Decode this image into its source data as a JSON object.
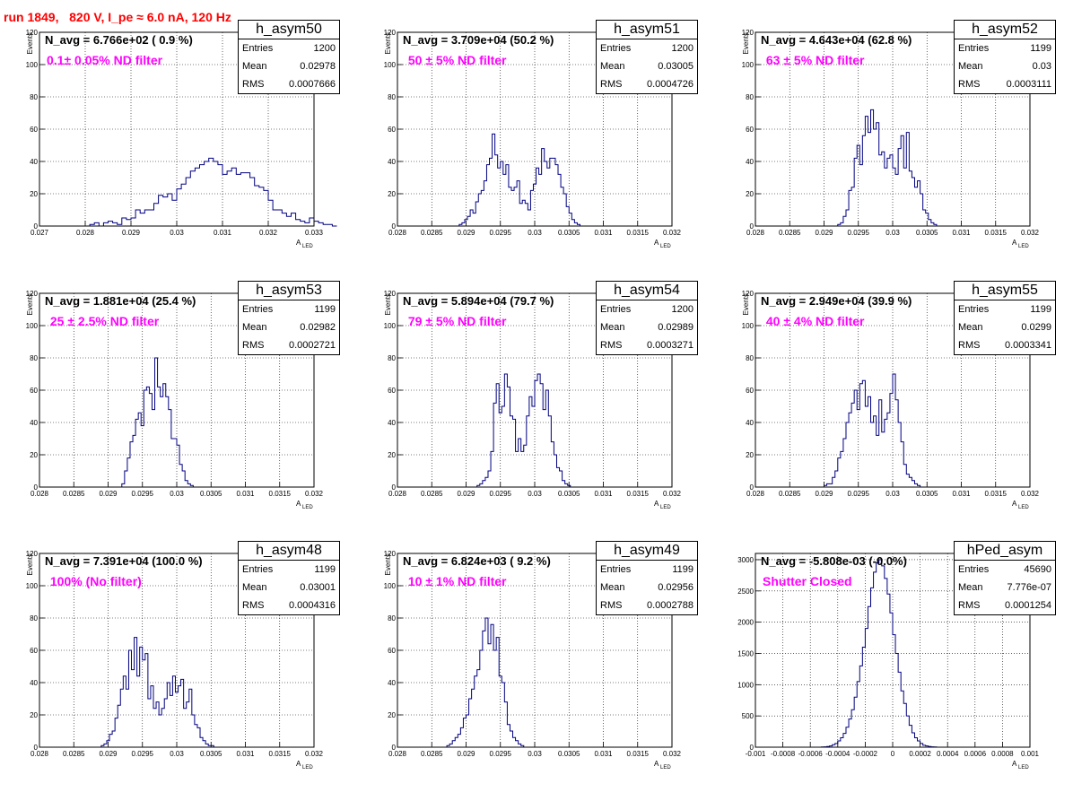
{
  "header": {
    "run_title": "run 1849,   820 V, I_pe ≈ 6.0 nA, 120 Hz",
    "title_color": "#ff0000"
  },
  "colors": {
    "histogram_line": "#000080",
    "filter_label": "#ff00ff",
    "grid": "#000000"
  },
  "chart_data": [
    {
      "type": "bar",
      "name": "h_asym50",
      "n_avg_label": "N_avg = 6.766e+02 ( 0.9 %)",
      "filter_label": "0.1± 0.05% ND filter",
      "stats": {
        "entries": "1200",
        "mean": "0.02978",
        "rms": "0.0007666"
      },
      "xlabel": "A",
      "xlabel_sub": "LED",
      "ylabel": "Events",
      "xlim": [
        0.027,
        0.033
      ],
      "ylim": [
        0,
        120
      ],
      "xticks": [
        "0.027",
        "0.028",
        "0.029",
        "0.03",
        "0.031",
        "0.032",
        "0.033"
      ],
      "yticks": [
        "0",
        "20",
        "40",
        "60",
        "80",
        "100",
        "120"
      ],
      "bin_start": 0.0275,
      "bin_width": 0.0001,
      "values": [
        0,
        0,
        0,
        0,
        0,
        0,
        1,
        2,
        0,
        2,
        3,
        2,
        1,
        5,
        4,
        5,
        10,
        8,
        10,
        10,
        14,
        19,
        18,
        20,
        16,
        23,
        26,
        30,
        34,
        36,
        38,
        40,
        42,
        40,
        38,
        32,
        34,
        36,
        32,
        33,
        33,
        30,
        25,
        24,
        22,
        16,
        10,
        10,
        8,
        6,
        8,
        4,
        3,
        2,
        5,
        3,
        2,
        1,
        1,
        0
      ]
    },
    {
      "type": "bar",
      "name": "h_asym51",
      "n_avg_label": "N_avg = 3.709e+04 (50.2 %)",
      "filter_label": " 50 ± 5% ND filter",
      "stats": {
        "entries": "1200",
        "mean": "0.03005",
        "rms": "0.0004726"
      },
      "xlabel": "A",
      "xlabel_sub": "LED",
      "ylabel": "Events",
      "xlim": [
        0.028,
        0.032
      ],
      "ylim": [
        0,
        120
      ],
      "xticks": [
        "0.028",
        "0.0285",
        "0.029",
        "0.0295",
        "0.03",
        "0.0305",
        "0.031",
        "0.0315",
        "0.032"
      ],
      "yticks": [
        "0",
        "20",
        "40",
        "60",
        "80",
        "100",
        "120"
      ],
      "bin_start": 0.0289,
      "bin_width": 4e-05,
      "values": [
        1,
        2,
        4,
        6,
        10,
        8,
        15,
        20,
        22,
        28,
        38,
        42,
        57,
        44,
        36,
        40,
        32,
        38,
        24,
        22,
        24,
        28,
        14,
        16,
        14,
        10,
        22,
        26,
        36,
        32,
        48,
        40,
        36,
        42,
        42,
        38,
        32,
        24,
        20,
        12,
        8,
        4,
        2,
        1,
        0
      ]
    },
    {
      "type": "bar",
      "name": "h_asym52",
      "n_avg_label": "N_avg = 4.643e+04 (62.8 %)",
      "filter_label": " 63 ± 5% ND filter",
      "stats": {
        "entries": "1199",
        "mean": "0.03",
        "rms": "0.0003111"
      },
      "xlabel": "A",
      "xlabel_sub": "LED",
      "ylabel": "Events",
      "xlim": [
        0.028,
        0.032
      ],
      "ylim": [
        0,
        120
      ],
      "xticks": [
        "0.028",
        "0.0285",
        "0.029",
        "0.0295",
        "0.03",
        "0.0305",
        "0.031",
        "0.0315",
        "0.032"
      ],
      "yticks": [
        "0",
        "20",
        "40",
        "60",
        "80",
        "100",
        "120"
      ],
      "bin_start": 0.0292,
      "bin_width": 4e-05,
      "values": [
        1,
        2,
        6,
        10,
        22,
        24,
        42,
        50,
        38,
        56,
        68,
        58,
        72,
        60,
        64,
        44,
        46,
        36,
        42,
        44,
        36,
        32,
        48,
        56,
        36,
        58,
        34,
        30,
        24,
        28,
        20,
        10,
        8,
        4,
        2,
        1
      ]
    },
    {
      "type": "bar",
      "name": "h_asym53",
      "n_avg_label": "N_avg = 1.881e+04 (25.4 %)",
      "filter_label": " 25 ± 2.5% ND filter",
      "stats": {
        "entries": "1199",
        "mean": "0.02982",
        "rms": "0.0002721"
      },
      "xlabel": "A",
      "xlabel_sub": "LED",
      "ylabel": "Events",
      "xlim": [
        0.028,
        0.032
      ],
      "ylim": [
        0,
        120
      ],
      "xticks": [
        "0.028",
        "0.0285",
        "0.029",
        "0.0295",
        "0.03",
        "0.0305",
        "0.031",
        "0.0315",
        "0.032"
      ],
      "yticks": [
        "0",
        "20",
        "40",
        "60",
        "80",
        "100",
        "120"
      ],
      "bin_start": 0.0292,
      "bin_width": 4e-05,
      "values": [
        2,
        10,
        18,
        28,
        32,
        42,
        46,
        38,
        60,
        62,
        58,
        48,
        80,
        62,
        56,
        64,
        56,
        48,
        30,
        30,
        26,
        14,
        10,
        4,
        2,
        1
      ]
    },
    {
      "type": "bar",
      "name": "h_asym54",
      "n_avg_label": "N_avg = 5.894e+04 (79.7 %)",
      "filter_label": " 79 ± 5% ND filter",
      "stats": {
        "entries": "1200",
        "mean": "0.02989",
        "rms": "0.0003271"
      },
      "xlabel": "A",
      "xlabel_sub": "LED",
      "ylabel": "Events",
      "xlim": [
        0.028,
        0.032
      ],
      "ylim": [
        0,
        120
      ],
      "xticks": [
        "0.028",
        "0.0285",
        "0.029",
        "0.0295",
        "0.03",
        "0.0305",
        "0.031",
        "0.0315",
        "0.032"
      ],
      "yticks": [
        "0",
        "20",
        "40",
        "60",
        "80",
        "100",
        "120"
      ],
      "bin_start": 0.02916,
      "bin_width": 4e-05,
      "values": [
        1,
        2,
        4,
        6,
        10,
        22,
        52,
        64,
        46,
        50,
        70,
        62,
        44,
        42,
        22,
        30,
        22,
        26,
        44,
        56,
        50,
        66,
        70,
        64,
        48,
        60,
        44,
        28,
        20,
        12,
        10,
        4,
        2,
        1
      ]
    },
    {
      "type": "bar",
      "name": "h_asym55",
      "n_avg_label": "N_avg = 2.949e+04 (39.9 %)",
      "filter_label": " 40 ± 4% ND filter",
      "stats": {
        "entries": "1199",
        "mean": "0.0299",
        "rms": "0.0003341"
      },
      "xlabel": "A",
      "xlabel_sub": "LED",
      "ylabel": "Events",
      "xlim": [
        0.028,
        0.032
      ],
      "ylim": [
        0,
        120
      ],
      "xticks": [
        "0.028",
        "0.0285",
        "0.029",
        "0.0295",
        "0.03",
        "0.0305",
        "0.031",
        "0.0315",
        "0.032"
      ],
      "yticks": [
        "0",
        "20",
        "40",
        "60",
        "80",
        "100",
        "120"
      ],
      "bin_start": 0.029,
      "bin_width": 4e-05,
      "values": [
        1,
        2,
        2,
        6,
        10,
        18,
        22,
        30,
        40,
        46,
        52,
        60,
        48,
        64,
        66,
        50,
        56,
        40,
        44,
        32,
        54,
        34,
        42,
        46,
        58,
        70,
        54,
        40,
        28,
        14,
        8,
        6,
        4,
        2,
        1
      ]
    },
    {
      "type": "bar",
      "name": "h_asym48",
      "n_avg_label": "N_avg = 7.391e+04 (100.0 %)",
      "filter_label": " 100% (No filter)",
      "stats": {
        "entries": "1199",
        "mean": "0.03001",
        "rms": "0.0004316"
      },
      "xlabel": "A",
      "xlabel_sub": "LED",
      "ylabel": "Events",
      "xlim": [
        0.028,
        0.032
      ],
      "ylim": [
        0,
        120
      ],
      "xticks": [
        "0.028",
        "0.0285",
        "0.029",
        "0.0295",
        "0.03",
        "0.0305",
        "0.031",
        "0.0315",
        "0.032"
      ],
      "yticks": [
        "0",
        "20",
        "40",
        "60",
        "80",
        "100",
        "120"
      ],
      "bin_start": 0.0289,
      "bin_width": 4e-05,
      "values": [
        1,
        2,
        4,
        8,
        10,
        18,
        26,
        36,
        44,
        36,
        60,
        48,
        68,
        44,
        62,
        54,
        58,
        30,
        38,
        24,
        28,
        20,
        24,
        30,
        40,
        32,
        44,
        34,
        38,
        42,
        24,
        28,
        36,
        20,
        14,
        12,
        6,
        4,
        2,
        1,
        1
      ]
    },
    {
      "type": "bar",
      "name": "h_asym49",
      "n_avg_label": "N_avg = 6.824e+03 ( 9.2 %)",
      "filter_label": " 10 ± 1% ND filter",
      "stats": {
        "entries": "1199",
        "mean": "0.02956",
        "rms": "0.0002788"
      },
      "xlabel": "A",
      "xlabel_sub": "LED",
      "ylabel": "Events",
      "xlim": [
        0.028,
        0.032
      ],
      "ylim": [
        0,
        120
      ],
      "xticks": [
        "0.028",
        "0.0285",
        "0.029",
        "0.0295",
        "0.03",
        "0.0305",
        "0.031",
        "0.0315",
        "0.032"
      ],
      "yticks": [
        "0",
        "20",
        "40",
        "60",
        "80",
        "100",
        "120"
      ],
      "bin_start": 0.02872,
      "bin_width": 4e-05,
      "values": [
        1,
        2,
        4,
        6,
        8,
        12,
        18,
        20,
        30,
        36,
        44,
        48,
        60,
        72,
        80,
        64,
        76,
        60,
        68,
        44,
        40,
        28,
        14,
        10,
        6,
        4,
        2,
        1
      ]
    },
    {
      "type": "bar",
      "name": "hPed_asym",
      "n_avg_label": "N_avg = -5.808e-03 (-0.0%)",
      "filter_label": "Shutter Closed",
      "stats": {
        "entries": "45690",
        "mean": "7.776e-07",
        "rms": "0.0001254"
      },
      "xlabel": "A",
      "xlabel_sub": "LED",
      "ylabel": "",
      "xlim": [
        -0.001,
        0.001
      ],
      "ylim": [
        0,
        3100
      ],
      "xticks": [
        "-0.001",
        "-0.0008",
        "-0.0006",
        "-0.0004",
        "-0.0002",
        "0",
        "0.0002",
        "0.0004",
        "0.0006",
        "0.0008",
        "0.001"
      ],
      "xtick_values": [
        -0.001,
        -0.0008,
        -0.0006,
        -0.0004,
        -0.0002,
        0,
        0.0002,
        0.0004,
        0.0006,
        0.0008,
        0.001
      ],
      "yticks": [
        "0",
        "500",
        "1000",
        "1500",
        "2000",
        "2500",
        "3000"
      ],
      "ytick_values": [
        0,
        500,
        1000,
        1500,
        2000,
        2500,
        3000
      ],
      "bin_start": -0.00052,
      "bin_width": 2e-05,
      "values": [
        3,
        5,
        10,
        20,
        40,
        60,
        100,
        150,
        220,
        320,
        450,
        600,
        800,
        1050,
        1300,
        1600,
        1900,
        2250,
        2550,
        2800,
        2950,
        3000,
        2900,
        2700,
        2450,
        2150,
        1800,
        1500,
        1200,
        900,
        700,
        500,
        350,
        230,
        150,
        100,
        60,
        30,
        20,
        10,
        5,
        3
      ]
    }
  ]
}
